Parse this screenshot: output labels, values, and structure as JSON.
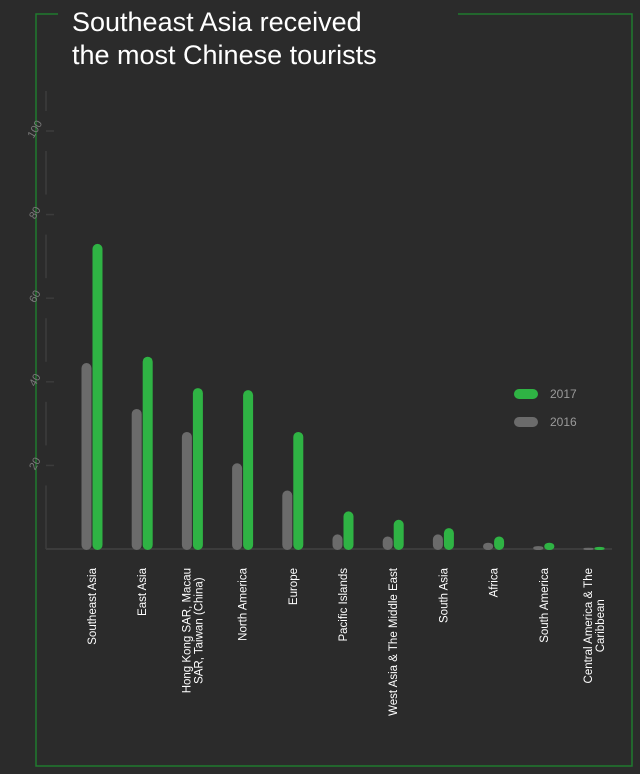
{
  "chart_data": {
    "type": "bar",
    "title": "Southeast Asia received the most Chinese tourists",
    "title_lines": [
      "Southeast Asia received",
      "the most Chinese tourists"
    ],
    "xlabel": "",
    "ylabel": "",
    "ylim": [
      0,
      100
    ],
    "yticks": [
      20,
      40,
      60,
      80,
      100
    ],
    "grid": false,
    "legend_position": "right",
    "category_lines": [
      [
        "Southeast Asia"
      ],
      [
        "East Asia"
      ],
      [
        "Hong Kong SAR, Macau",
        "SAR, Taiwan (China)"
      ],
      [
        "North America"
      ],
      [
        "Europe"
      ],
      [
        "Pacific Islands"
      ],
      [
        "West Asia & The Middle East"
      ],
      [
        "South Asia"
      ],
      [
        "Africa"
      ],
      [
        "South America"
      ],
      [
        "Central America & The",
        "Caribbean"
      ]
    ],
    "series": [
      {
        "name": "2016",
        "color": "#6b6b6b",
        "values": [
          44.5,
          33.5,
          28,
          20.5,
          14,
          3.5,
          3,
          3.5,
          1.5,
          0.7,
          0.3
        ]
      },
      {
        "name": "2017",
        "color": "#2fb344",
        "values": [
          73,
          46,
          38.5,
          38,
          28,
          9,
          7,
          5,
          3,
          1.5,
          0.5
        ]
      }
    ]
  },
  "style": {
    "frame_color": "#1f7a2e",
    "axis_color": "#3c3c3c",
    "background": "#2b2b2b"
  }
}
